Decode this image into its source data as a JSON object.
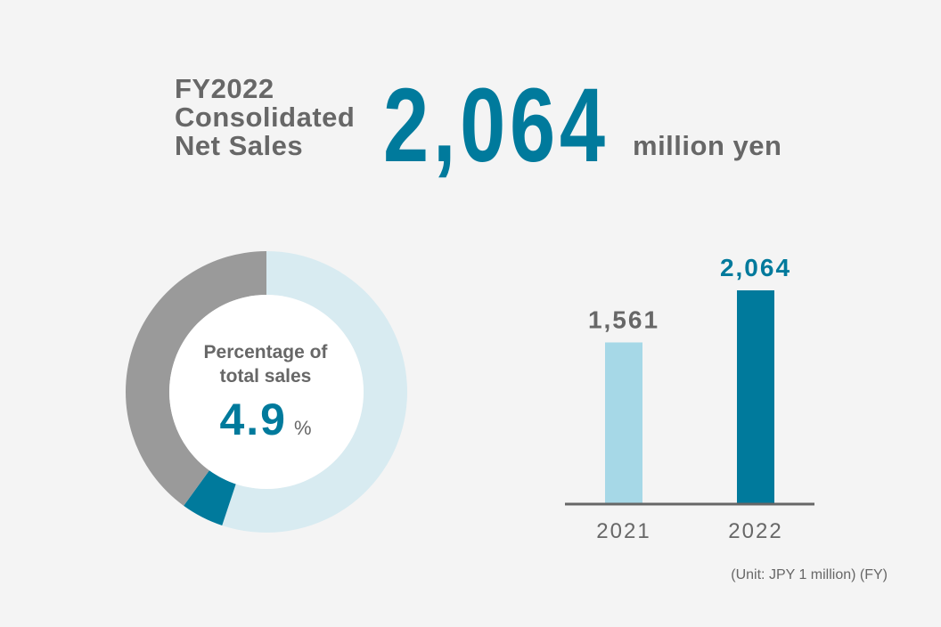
{
  "headline": {
    "label_lines": [
      "FY2022",
      "Consolidated",
      "Net Sales"
    ],
    "value": "2,064",
    "unit": "million yen"
  },
  "donut": {
    "caption_lines": [
      "Percentage of",
      "total sales"
    ],
    "value": "4.9",
    "unit": "%"
  },
  "footnote": "(Unit: JPY 1 million)  (FY)",
  "colors": {
    "accent": "#007a9c",
    "light_blue": "#a6d8e7",
    "pale_blue": "#d8ebf1",
    "gray": "#9a9a9a",
    "text_gray": "#676767",
    "axis": "#666666"
  },
  "chart_data": [
    {
      "type": "pie",
      "style": "donut",
      "slices": [
        {
          "value": 55.1,
          "color": "#d8ebf1"
        },
        {
          "value": 4.9,
          "color": "#007a9c"
        },
        {
          "value": 40.0,
          "color": "#9a9a9a"
        }
      ],
      "center_caption": "Percentage of total sales",
      "center_value": "4.9 %"
    },
    {
      "type": "bar",
      "categories": [
        "2021",
        "2022"
      ],
      "values": [
        1561,
        2064
      ],
      "value_labels": [
        "1,561",
        "2,064"
      ],
      "bar_colors": [
        "#a6d8e7",
        "#007a9c"
      ],
      "label_colors": [
        "#676767",
        "#007a9c"
      ],
      "ylim": [
        0,
        2200
      ],
      "grid": false,
      "unit_note": "(Unit: JPY 1 million)  (FY)"
    }
  ]
}
